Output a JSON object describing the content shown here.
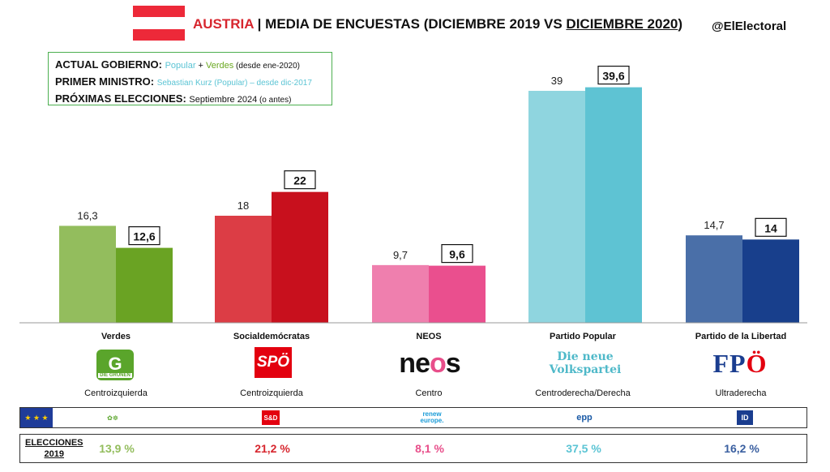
{
  "header": {
    "country": "AUSTRIA",
    "separator": "|",
    "subtitle_part1": "MEDIA DE ENCUESTAS (DICIEMBRE 2019 VS ",
    "subtitle_underlined": "DICIEMBRE 2020",
    "subtitle_close": ")",
    "handle": "@ElElectoral",
    "flag_colors": [
      "#ed2939",
      "#ffffff",
      "#ed2939"
    ]
  },
  "infobox": {
    "gov_label": "ACTUAL GOBIERNO:",
    "gov_party1": "Popular",
    "gov_plus": " + ",
    "gov_party2": "Verdes",
    "gov_since": " (desde ene-2020)",
    "pm_label": "PRIMER MINISTRO:",
    "pm_name": "Sebastian Kurz (Popular) – desde dic-2017",
    "next_label": "PRÓXIMAS ELECCIONES:",
    "next_value": "Septiembre 2024",
    "next_note": " (o antes)"
  },
  "chart_data": {
    "type": "bar",
    "categories": [
      "Verdes",
      "Socialdemócratas",
      "NEOS",
      "Partido Popular",
      "Partido de la Libertad"
    ],
    "series": [
      {
        "values": [
          16.3,
          18,
          9.7,
          39,
          14.7
        ],
        "labels": [
          "16,3",
          "18",
          "9,7",
          "39",
          "14,7"
        ],
        "colors": [
          "#93bd5d",
          "#dc3d45",
          "#ef7fae",
          "#8fd5df",
          "#4a6fa8"
        ]
      },
      {
        "values": [
          12.6,
          22,
          9.6,
          39.6,
          14
        ],
        "labels": [
          "12,6",
          "22",
          "9,6",
          "39,6",
          "14"
        ],
        "colors": [
          "#6aa323",
          "#c8101d",
          "#ea4f8e",
          "#5ec3d3",
          "#183f8c"
        ]
      }
    ],
    "ylim": [
      0,
      42
    ]
  },
  "parties": [
    {
      "name": "Verdes",
      "ideology": "Centroizquierda"
    },
    {
      "name": "Socialdemócratas",
      "ideology": "Centroizquierda"
    },
    {
      "name": "NEOS",
      "ideology": "Centro"
    },
    {
      "name": "Partido Popular",
      "ideology": "Centroderecha/Derecha"
    },
    {
      "name": "Partido de la Libertad",
      "ideology": "Ultraderecha"
    }
  ],
  "logos": {
    "gruene_glyph": "G",
    "gruene_band": "DIE GRÜNEN",
    "spo": "SPÖ",
    "neos_a": "ne",
    "neos_o": "o",
    "neos_b": "s",
    "ovp_line1": "Die neue",
    "ovp_line2": "Volkspartei",
    "fpo_a": "FP",
    "fpo_o": "Ö"
  },
  "eu_groups": {
    "sd": "S&D",
    "renew_1": "renew",
    "renew_2": "europe.",
    "epp": "epp",
    "id": "ID"
  },
  "elections": {
    "label_1": "ELECCIONES",
    "label_2": "2019",
    "values": [
      "13,9 %",
      "21,2 %",
      "8,1 %",
      "37,5 %",
      "16,2 %"
    ],
    "colors": [
      "#93bd5d",
      "#d7262e",
      "#e84e8a",
      "#5bc4d4",
      "#3a5fa0"
    ]
  }
}
